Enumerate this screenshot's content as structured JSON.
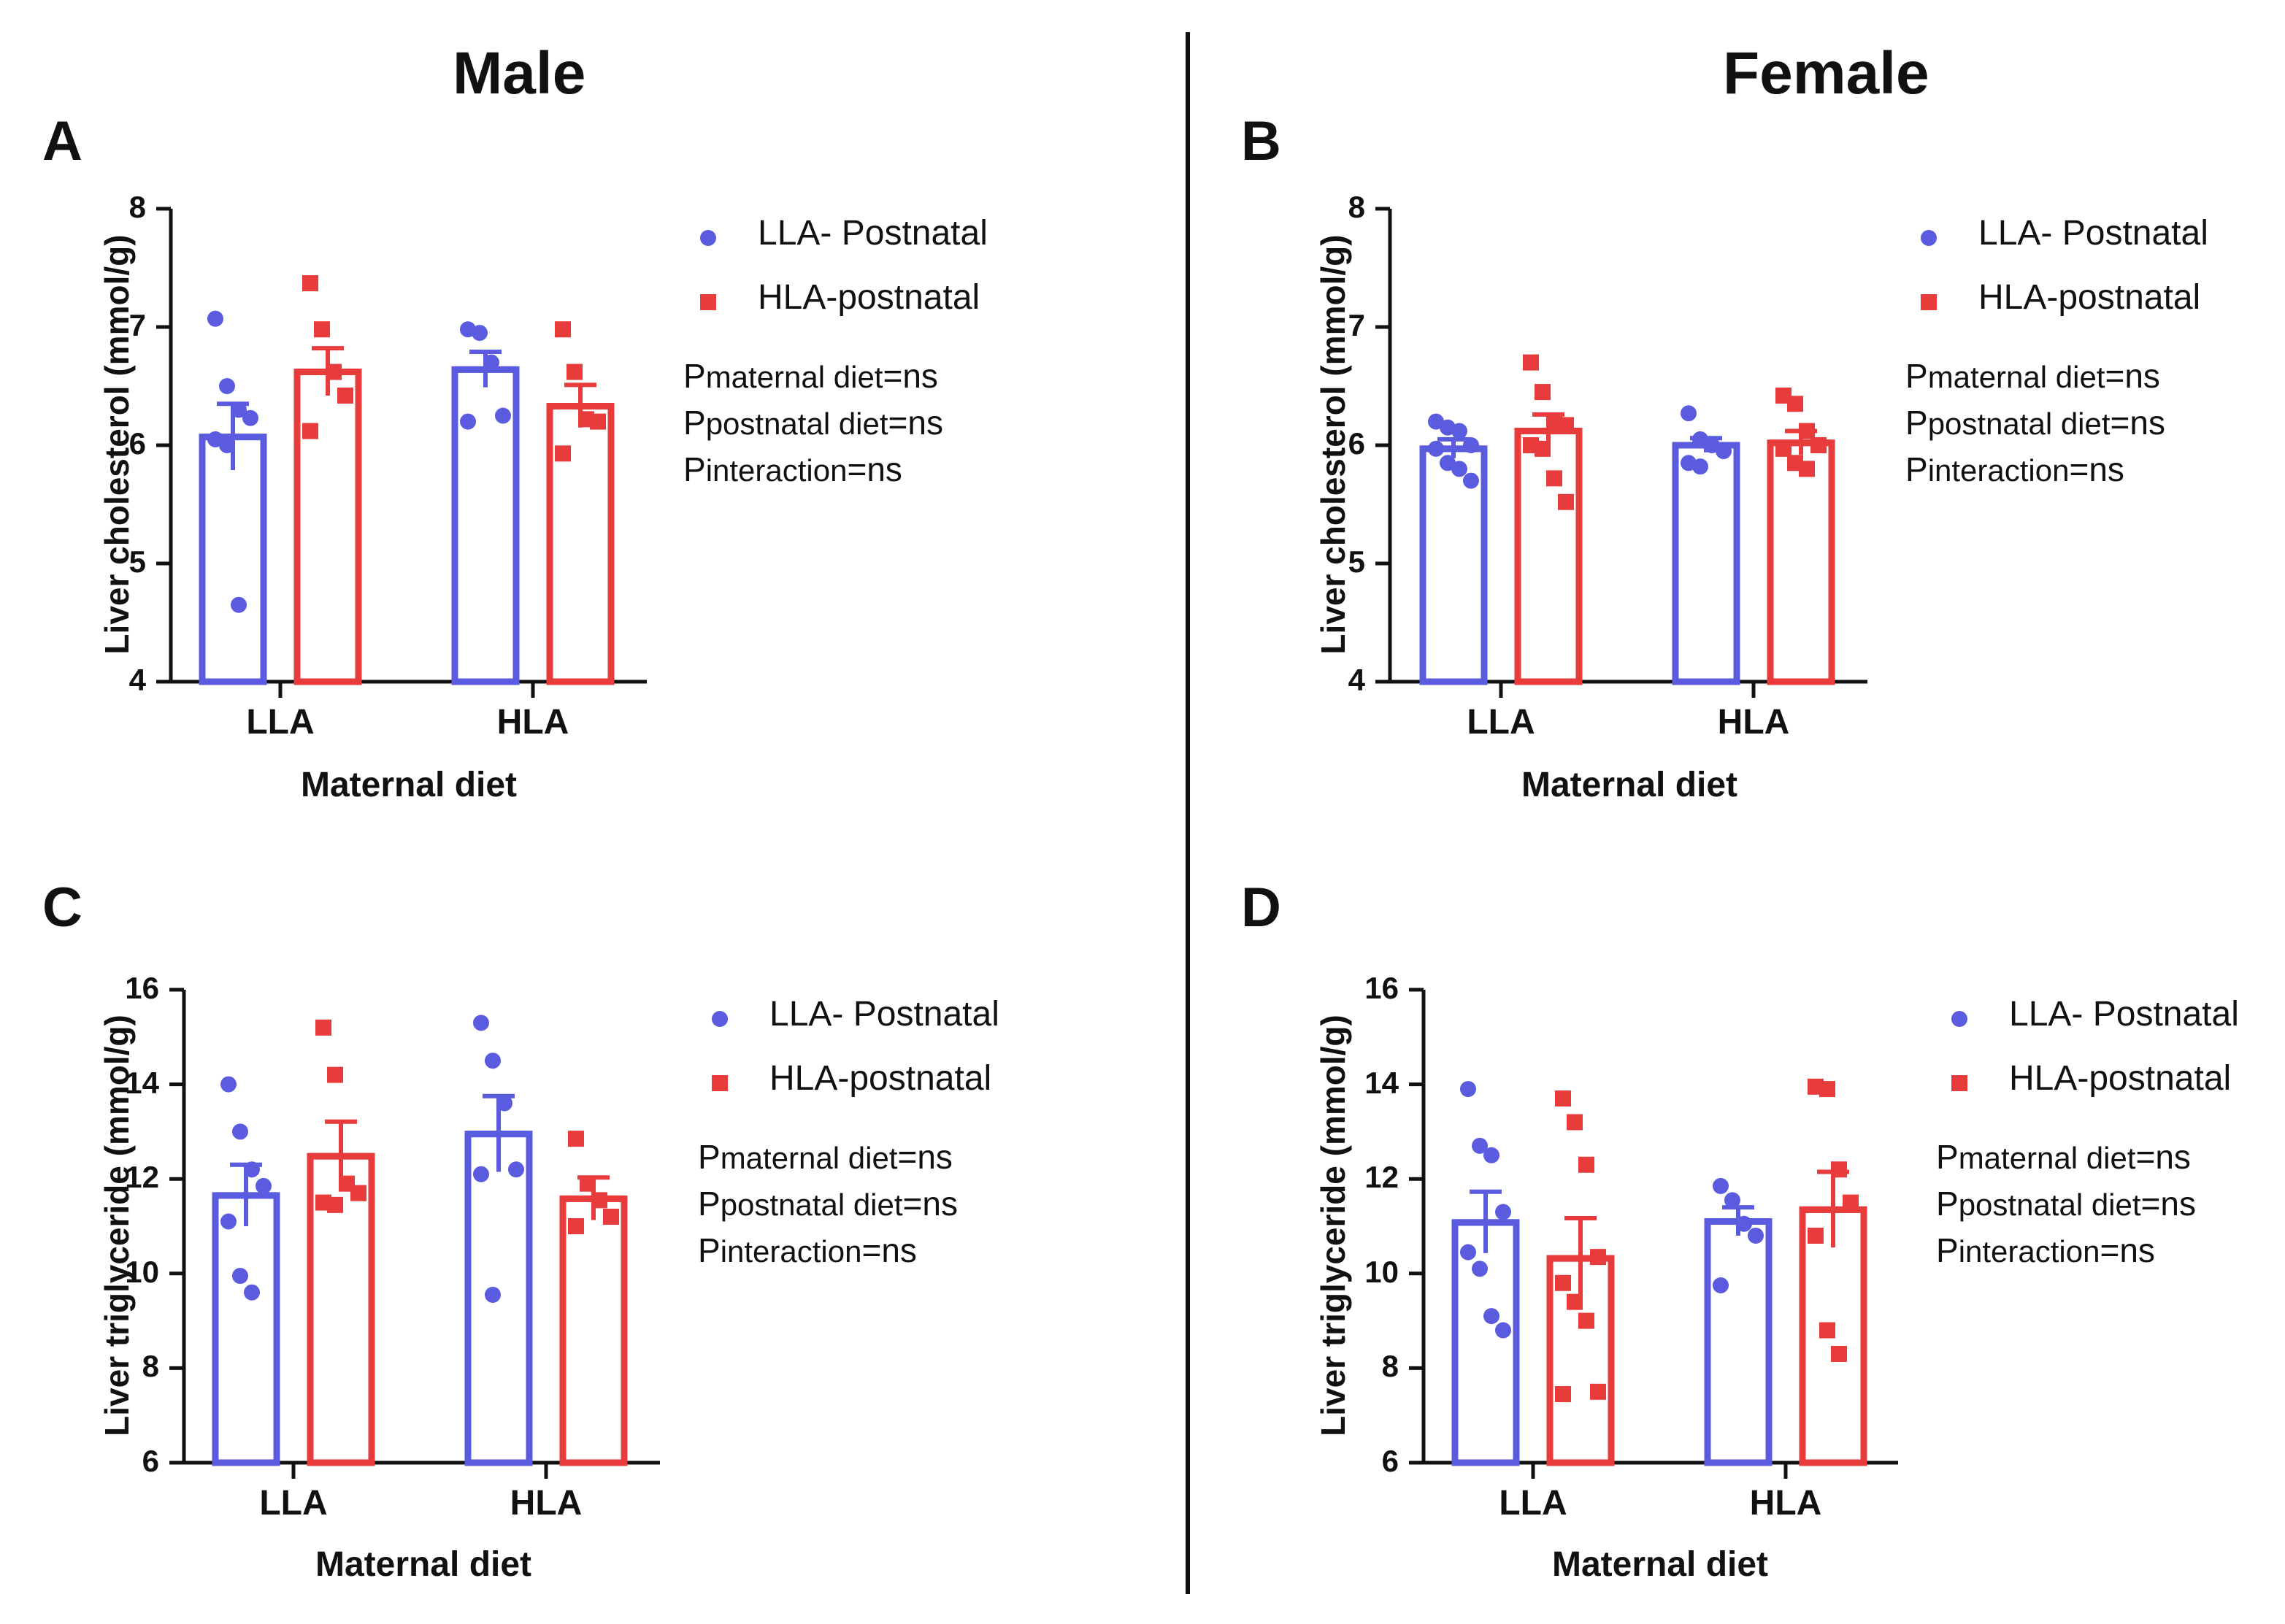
{
  "headers": {
    "male": "Male",
    "female": "Female"
  },
  "legend_labels": {
    "llap": "LLA- Postnatal",
    "hlap": "HLA-postnatal"
  },
  "stats_labels": {
    "p": "P",
    "maternal": "maternal diet",
    "postnatal": "postnatal diet",
    "interaction": "interaction",
    "ns": "=ns"
  },
  "colors": {
    "blue": "#5b5be0",
    "red": "#e83b3b"
  },
  "chart_data": [
    {
      "panel": "A",
      "type": "bar",
      "sex": "Male",
      "ylabel": "Liver cholesterol (mmol/g)",
      "xlabel": "Maternal diet",
      "ylim": [
        4,
        8
      ],
      "yticks": [
        4,
        5,
        6,
        7,
        8
      ],
      "categories": [
        "LLA",
        "HLA"
      ],
      "series": [
        {
          "name": "LLA- Postnatal",
          "marker": "circle",
          "values": [
            6.07,
            6.64
          ],
          "sem": [
            0.28,
            0.15
          ],
          "points": [
            [
              7.07,
              6.5,
              6.3,
              6.23,
              6.05,
              6.0,
              4.65
            ],
            [
              6.98,
              6.95,
              6.7,
              6.25,
              6.2
            ]
          ]
        },
        {
          "name": "HLA-postnatal",
          "marker": "square",
          "values": [
            6.62,
            6.33
          ],
          "sem": [
            0.2,
            0.18
          ],
          "points": [
            [
              7.37,
              6.98,
              6.62,
              6.42,
              6.12
            ],
            [
              6.98,
              6.62,
              6.22,
              6.2,
              5.93
            ]
          ]
        }
      ],
      "stats": [
        "ns",
        "ns",
        "ns"
      ]
    },
    {
      "panel": "B",
      "type": "bar",
      "sex": "Female",
      "ylabel": "Liver cholesterol (mmol/g)",
      "xlabel": "Maternal diet",
      "ylim": [
        4,
        8
      ],
      "yticks": [
        4,
        5,
        6,
        7,
        8
      ],
      "categories": [
        "LLA",
        "HLA"
      ],
      "series": [
        {
          "name": "LLA- Postnatal",
          "marker": "circle",
          "values": [
            5.97,
            6.0
          ],
          "sem": [
            0.08,
            0.06
          ],
          "points": [
            [
              6.2,
              6.15,
              6.12,
              6.0,
              5.97,
              5.85,
              5.8,
              5.7
            ],
            [
              6.27,
              6.05,
              6.0,
              5.95,
              5.85,
              5.82
            ]
          ]
        },
        {
          "name": "HLA-postnatal",
          "marker": "square",
          "values": [
            6.12,
            6.02
          ],
          "sem": [
            0.14,
            0.1
          ],
          "points": [
            [
              6.7,
              6.45,
              6.2,
              6.17,
              6.0,
              5.97,
              5.72,
              5.52
            ],
            [
              6.42,
              6.35,
              6.12,
              6.0,
              5.97,
              5.85,
              5.8
            ]
          ]
        }
      ],
      "stats": [
        "ns",
        "ns",
        "ns"
      ]
    },
    {
      "panel": "C",
      "type": "bar",
      "sex": "Male",
      "ylabel": "Liver triglyceride (mmol/g)",
      "xlabel": "Maternal diet",
      "ylim": [
        6,
        16
      ],
      "yticks": [
        6,
        8,
        10,
        12,
        14,
        16
      ],
      "categories": [
        "LLA",
        "HLA"
      ],
      "series": [
        {
          "name": "LLA- Postnatal",
          "marker": "circle",
          "values": [
            11.65,
            12.95
          ],
          "sem": [
            0.65,
            0.8
          ],
          "points": [
            [
              14.0,
              13.0,
              12.2,
              11.85,
              11.1,
              9.95,
              9.6
            ],
            [
              15.3,
              14.5,
              13.6,
              12.2,
              12.1,
              9.55
            ]
          ]
        },
        {
          "name": "HLA-postnatal",
          "marker": "square",
          "values": [
            12.48,
            11.58
          ],
          "sem": [
            0.73,
            0.45
          ],
          "points": [
            [
              15.2,
              14.2,
              11.9,
              11.7,
              11.5,
              11.45
            ],
            [
              12.85,
              11.9,
              11.55,
              11.2,
              11.0
            ]
          ]
        }
      ],
      "stats": [
        "ns",
        "ns",
        "ns"
      ]
    },
    {
      "panel": "D",
      "type": "bar",
      "sex": "Female",
      "ylabel": "Liver triglyceride (mmol/g)",
      "xlabel": "Maternal diet",
      "ylim": [
        6,
        16
      ],
      "yticks": [
        6,
        8,
        10,
        12,
        14,
        16
      ],
      "categories": [
        "LLA",
        "HLA"
      ],
      "series": [
        {
          "name": "LLA- Postnatal",
          "marker": "circle",
          "values": [
            11.08,
            11.1
          ],
          "sem": [
            0.65,
            0.3
          ],
          "points": [
            [
              13.9,
              12.7,
              12.5,
              11.3,
              10.45,
              10.1,
              9.1,
              8.8
            ],
            [
              11.85,
              11.55,
              11.05,
              10.8,
              9.75
            ]
          ]
        },
        {
          "name": "HLA-postnatal",
          "marker": "square",
          "values": [
            10.32,
            11.35
          ],
          "sem": [
            0.85,
            0.8
          ],
          "points": [
            [
              13.7,
              13.2,
              12.3,
              10.35,
              9.8,
              9.4,
              9.0,
              7.5,
              7.45
            ],
            [
              13.95,
              13.9,
              12.2,
              11.5,
              10.8,
              8.8,
              8.3
            ]
          ]
        }
      ],
      "stats": [
        "ns",
        "ns",
        "ns"
      ]
    }
  ]
}
